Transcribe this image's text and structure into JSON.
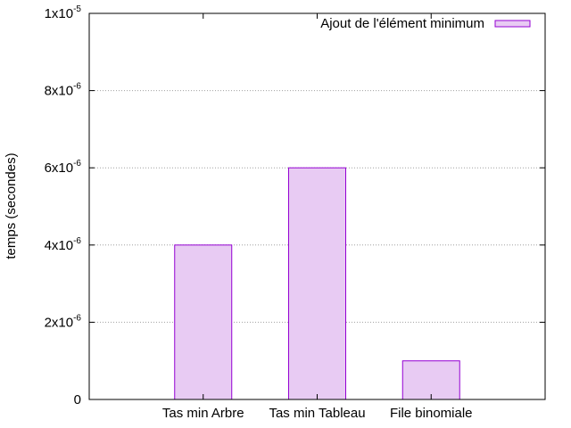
{
  "chart_data": {
    "type": "bar",
    "title": "",
    "xlabel": "",
    "ylabel": "temps (secondes)",
    "categories": [
      "Tas min Arbre",
      "Tas min Tableau",
      "File binomiale"
    ],
    "series": [
      {
        "name": "Ajout de l'élément minimum",
        "values": [
          4e-06,
          6e-06,
          1e-06
        ],
        "color": "#e8cbf3",
        "stroke": "#9400d3"
      }
    ],
    "ylim": [
      0,
      1e-05
    ],
    "yticks": [
      {
        "value": 0,
        "mantissa": "0",
        "exponent": ""
      },
      {
        "value": 2e-06,
        "mantissa": "2x10",
        "exponent": "-6"
      },
      {
        "value": 4e-06,
        "mantissa": "4x10",
        "exponent": "-6"
      },
      {
        "value": 6e-06,
        "mantissa": "6x10",
        "exponent": "-6"
      },
      {
        "value": 8e-06,
        "mantissa": "8x10",
        "exponent": "-6"
      },
      {
        "value": 1e-05,
        "mantissa": "1x10",
        "exponent": "-5"
      }
    ],
    "grid": "horizontal dotted",
    "legend_position": "top-right"
  }
}
